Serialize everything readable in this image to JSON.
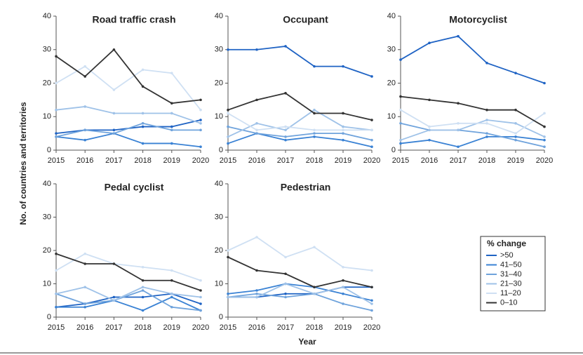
{
  "y_label": "No. of countries and territories",
  "x_label": "Year",
  "legend_title": "% change",
  "chart_data": [
    {
      "type": "line",
      "title": "Road traffic crash",
      "x": [
        2015,
        2016,
        2017,
        2018,
        2019,
        2020
      ],
      "xlim": [
        2015,
        2020
      ],
      "xticks": [
        2015,
        2016,
        2017,
        2018,
        2019,
        2020
      ],
      "ylim": [
        0,
        40
      ],
      "yticks": [
        0,
        10,
        20,
        30,
        40
      ],
      "series": [
        {
          "name": ">50",
          "color": "#1f63c4",
          "values": [
            5,
            6,
            6,
            7,
            7,
            9
          ]
        },
        {
          "name": "41–50",
          "color": "#3a82d4",
          "values": [
            4,
            3,
            5,
            2,
            2,
            1
          ]
        },
        {
          "name": "31–40",
          "color": "#6fa3dc",
          "values": [
            4,
            6,
            5,
            8,
            6,
            6
          ]
        },
        {
          "name": "21–30",
          "color": "#9fc2e8",
          "values": [
            12,
            13,
            11,
            11,
            11,
            8
          ]
        },
        {
          "name": "11–20",
          "color": "#cfe0f3",
          "values": [
            20,
            25,
            18,
            24,
            23,
            12
          ]
        },
        {
          "name": "0–10",
          "color": "#333333",
          "values": [
            28,
            22,
            30,
            19,
            14,
            15
          ]
        }
      ]
    },
    {
      "type": "line",
      "title": "Occupant",
      "x": [
        2015,
        2016,
        2017,
        2018,
        2019,
        2020
      ],
      "xlim": [
        2015,
        2020
      ],
      "xticks": [
        2015,
        2016,
        2017,
        2018,
        2019,
        2020
      ],
      "ylim": [
        0,
        40
      ],
      "yticks": [
        0,
        10,
        20,
        30,
        40
      ],
      "series": [
        {
          "color": "#1f63c4",
          "values": [
            30,
            30,
            31,
            25,
            25,
            22
          ]
        },
        {
          "color": "#3a82d4",
          "values": [
            2,
            5,
            3,
            4,
            3,
            1
          ]
        },
        {
          "color": "#6fa3dc",
          "values": [
            7,
            5,
            4,
            5,
            5,
            3
          ]
        },
        {
          "color": "#9fc2e8",
          "values": [
            4,
            8,
            6,
            12,
            7,
            6
          ]
        },
        {
          "color": "#cfe0f3",
          "values": [
            11,
            6,
            7,
            6,
            6,
            6
          ]
        },
        {
          "color": "#333333",
          "values": [
            12,
            15,
            17,
            11,
            11,
            9
          ]
        }
      ]
    },
    {
      "type": "line",
      "title": "Motorcyclist",
      "x": [
        2015,
        2016,
        2017,
        2018,
        2019,
        2020
      ],
      "xlim": [
        2015,
        2020
      ],
      "xticks": [
        2015,
        2016,
        2017,
        2018,
        2019,
        2020
      ],
      "ylim": [
        0,
        40
      ],
      "yticks": [
        0,
        10,
        20,
        30,
        40
      ],
      "series": [
        {
          "color": "#1f63c4",
          "values": [
            27,
            32,
            34,
            26,
            23,
            20
          ]
        },
        {
          "color": "#3a82d4",
          "values": [
            2,
            3,
            1,
            4,
            4,
            3
          ]
        },
        {
          "color": "#6fa3dc",
          "values": [
            8,
            6,
            6,
            5,
            3,
            1
          ]
        },
        {
          "color": "#9fc2e8",
          "values": [
            3,
            6,
            6,
            9,
            8,
            4
          ]
        },
        {
          "color": "#cfe0f3",
          "values": [
            12,
            7,
            8,
            8,
            5,
            11
          ]
        },
        {
          "color": "#333333",
          "values": [
            16,
            15,
            14,
            12,
            12,
            7
          ]
        }
      ]
    },
    {
      "type": "line",
      "title": "Pedal cyclist",
      "x": [
        2015,
        2016,
        2017,
        2018,
        2019,
        2020
      ],
      "xlim": [
        2015,
        2020
      ],
      "xticks": [
        2015,
        2016,
        2017,
        2018,
        2019,
        2020
      ],
      "ylim": [
        0,
        40
      ],
      "yticks": [
        0,
        10,
        20,
        30,
        40
      ],
      "series": [
        {
          "color": "#1f63c4",
          "values": [
            3,
            4,
            6,
            6,
            7,
            4
          ]
        },
        {
          "color": "#3a82d4",
          "values": [
            3,
            3,
            5,
            2,
            6,
            2
          ]
        },
        {
          "color": "#6fa3dc",
          "values": [
            7,
            4,
            5,
            8,
            3,
            2
          ]
        },
        {
          "color": "#9fc2e8",
          "values": [
            7,
            9,
            5,
            9,
            7,
            6
          ]
        },
        {
          "color": "#cfe0f3",
          "values": [
            14,
            19,
            16,
            15,
            14,
            11
          ]
        },
        {
          "color": "#333333",
          "values": [
            19,
            16,
            16,
            11,
            11,
            8
          ]
        }
      ]
    },
    {
      "type": "line",
      "title": "Pedestrian",
      "x": [
        2015,
        2016,
        2017,
        2018,
        2019,
        2020
      ],
      "xlim": [
        2015,
        2020
      ],
      "xticks": [
        2015,
        2016,
        2017,
        2018,
        2019,
        2020
      ],
      "ylim": [
        0,
        40
      ],
      "yticks": [
        0,
        10,
        20,
        30,
        40
      ],
      "series": [
        {
          "color": "#1f63c4",
          "values": [
            6,
            6,
            7,
            7,
            9,
            9
          ]
        },
        {
          "color": "#3a82d4",
          "values": [
            7,
            8,
            10,
            9,
            7,
            5
          ]
        },
        {
          "color": "#6fa3dc",
          "values": [
            6,
            7,
            6,
            7,
            4,
            2
          ]
        },
        {
          "color": "#9fc2e8",
          "values": [
            6,
            6,
            10,
            7,
            9,
            4
          ]
        },
        {
          "color": "#cfe0f3",
          "values": [
            20,
            24,
            18,
            21,
            15,
            14
          ]
        },
        {
          "color": "#333333",
          "values": [
            18,
            14,
            13,
            9,
            11,
            9
          ]
        }
      ]
    }
  ]
}
